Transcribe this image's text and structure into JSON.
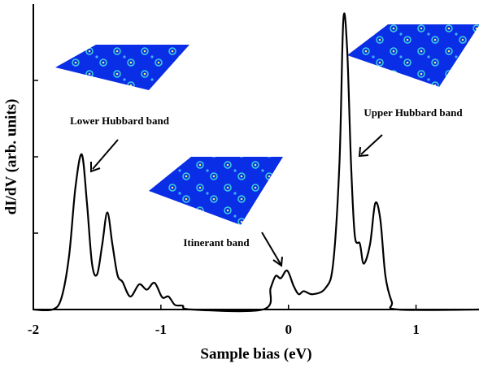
{
  "chart_data": {
    "type": "line",
    "xlabel": "Sample bias (eV)",
    "ylabel": "dI/dV (arb. units)",
    "annotations": [
      "Lower Hubbard band",
      "Upper Hubbard band",
      "Itinerant band"
    ],
    "x": [
      -2,
      -1.85,
      -1.78,
      -1.72,
      -1.67,
      -1.62,
      -1.58,
      -1.54,
      -1.5,
      -1.46,
      -1.42,
      -1.38,
      -1.34,
      -1.3,
      -1.24,
      -1.17,
      -1.11,
      -1.05,
      -0.99,
      -0.94,
      -0.89,
      -0.83,
      -0.76,
      -0.2,
      -0.14,
      -0.1,
      -0.06,
      -0.01,
      0.04,
      0.08,
      0.12,
      0.19,
      0.29,
      0.35,
      0.4,
      0.43,
      0.46,
      0.49,
      0.52,
      0.56,
      0.59,
      0.64,
      0.68,
      0.72,
      0.76,
      0.81,
      0.86,
      1.5
    ],
    "series": [
      {
        "color": "#000000",
        "values": [
          0,
          0,
          0.15,
          0.7,
          1.6,
          2.03,
          1.4,
          0.6,
          0.46,
          0.85,
          1.27,
          0.85,
          0.45,
          0.36,
          0.17,
          0.33,
          0.26,
          0.35,
          0.16,
          0.17,
          0.06,
          0.05,
          0,
          0,
          0.28,
          0.44,
          0.41,
          0.51,
          0.31,
          0.2,
          0.24,
          0.2,
          0.28,
          0.6,
          1.93,
          3.79,
          3.41,
          1.93,
          0.97,
          0.86,
          0.6,
          0.86,
          1.39,
          1.18,
          0.44,
          0.1,
          0,
          0
        ]
      }
    ],
    "xlim": [
      -2,
      1.5
    ],
    "xticks": [
      -2,
      -1,
      0,
      1
    ],
    "ylim": [
      0,
      4
    ],
    "yticks": [
      1,
      2,
      3
    ]
  }
}
